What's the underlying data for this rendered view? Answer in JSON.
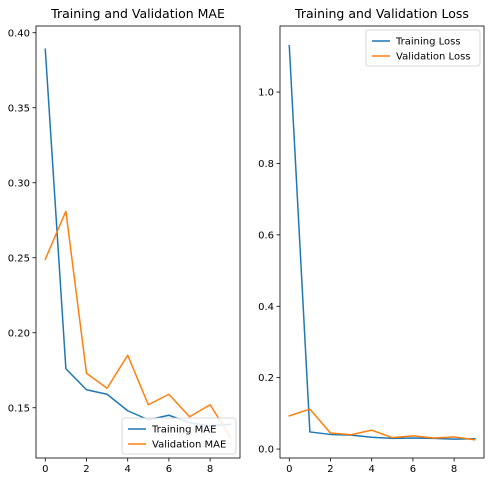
{
  "chart_data": [
    {
      "type": "line",
      "title": "Training and Validation MAE",
      "xlabel": "",
      "ylabel": "",
      "xlim": [
        -0.45,
        9.45
      ],
      "ylim": [
        0.1165,
        0.4045
      ],
      "xticks": [
        0,
        2,
        4,
        6,
        8
      ],
      "yticks": [
        0.15,
        0.2,
        0.25,
        0.3,
        0.35,
        0.4
      ],
      "ytick_labels": [
        "0.15",
        "0.20",
        "0.25",
        "0.30",
        "0.35",
        "0.40"
      ],
      "x": [
        0,
        1,
        2,
        3,
        4,
        5,
        6,
        7,
        8,
        9
      ],
      "series": [
        {
          "name": "Training MAE",
          "color": "#1f77b4",
          "values": [
            0.389,
            0.176,
            0.162,
            0.159,
            0.148,
            0.142,
            0.145,
            0.14,
            0.138,
            0.139
          ]
        },
        {
          "name": "Validation MAE",
          "color": "#ff7f0e",
          "values": [
            0.249,
            0.281,
            0.173,
            0.163,
            0.185,
            0.152,
            0.159,
            0.144,
            0.152,
            0.13
          ]
        }
      ],
      "legend": "lower right",
      "grid": false
    },
    {
      "type": "line",
      "title": "Training and Validation Loss",
      "xlabel": "",
      "ylabel": "",
      "xlim": [
        -0.45,
        9.45
      ],
      "ylim": [
        -0.025,
        1.185
      ],
      "xticks": [
        0,
        2,
        4,
        6,
        8
      ],
      "yticks": [
        0.0,
        0.2,
        0.4,
        0.6,
        0.8,
        1.0
      ],
      "ytick_labels": [
        "0.0",
        "0.2",
        "0.4",
        "0.6",
        "0.8",
        "1.0"
      ],
      "x": [
        0,
        1,
        2,
        3,
        4,
        5,
        6,
        7,
        8,
        9
      ],
      "series": [
        {
          "name": "Training Loss",
          "color": "#1f77b4",
          "values": [
            1.13,
            0.048,
            0.041,
            0.039,
            0.033,
            0.03,
            0.031,
            0.03,
            0.028,
            0.029
          ]
        },
        {
          "name": "Validation Loss",
          "color": "#ff7f0e",
          "values": [
            0.093,
            0.112,
            0.045,
            0.04,
            0.053,
            0.032,
            0.037,
            0.031,
            0.034,
            0.026
          ]
        }
      ],
      "legend": "upper right",
      "grid": false
    }
  ]
}
